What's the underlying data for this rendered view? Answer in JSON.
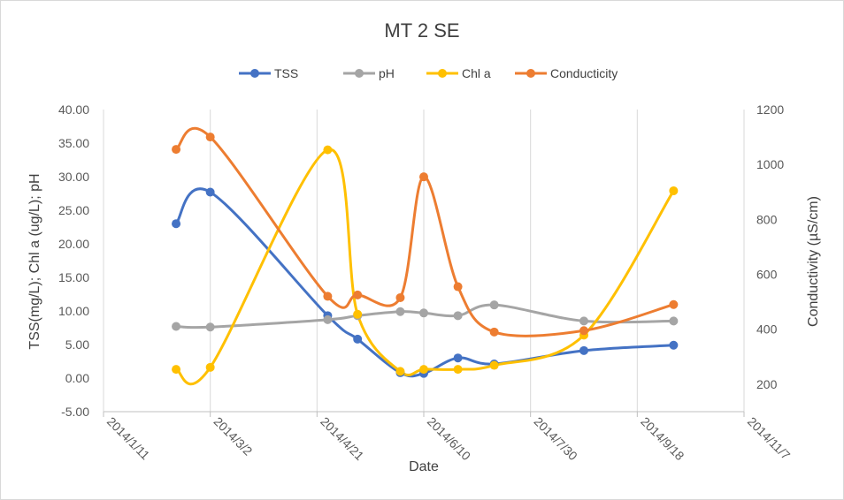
{
  "chart_data": {
    "type": "line",
    "title": "MT 2 SE",
    "xlabel": "Date",
    "ylabel_left": "TSS(mg/L); Chl a (ug/L); pH",
    "ylabel_right": "Conductivity  (µS/cm)",
    "x_ticks": [
      "2014/1/11",
      "2014/3/2",
      "2014/4/21",
      "2014/6/10",
      "2014/7/30",
      "2014/9/18",
      "2014/11/7"
    ],
    "x_range": [
      "2014/1/11",
      "2014/11/7"
    ],
    "y_left_ticks": [
      "-5.00",
      "0.00",
      "5.00",
      "10.00",
      "15.00",
      "20.00",
      "25.00",
      "30.00",
      "35.00",
      "40.00"
    ],
    "y_left_range": [
      -5,
      40
    ],
    "y_right_ticks": [
      "200",
      "400",
      "600",
      "800",
      "1000",
      "1200"
    ],
    "y_right_range": [
      100,
      1200
    ],
    "legend_position": "top",
    "grid": "vertical",
    "smoothed": true,
    "series": [
      {
        "name": "TSS",
        "axis": "left",
        "color": "#4472c4",
        "x": [
          "2014/2/14",
          "2014/3/2",
          "2014/4/26",
          "2014/5/10",
          "2014/5/30",
          "2014/6/10",
          "2014/6/26",
          "2014/7/13",
          "2014/8/24",
          "2014/10/5"
        ],
        "y": [
          23.0,
          27.7,
          9.3,
          5.8,
          0.8,
          0.7,
          3.0,
          2.1,
          4.1,
          4.9
        ]
      },
      {
        "name": "pH",
        "axis": "left",
        "color": "#a5a5a5",
        "x": [
          "2014/2/14",
          "2014/3/2",
          "2014/4/26",
          "2014/5/10",
          "2014/5/30",
          "2014/6/10",
          "2014/6/26",
          "2014/7/13",
          "2014/8/24",
          "2014/10/5"
        ],
        "y": [
          7.7,
          7.6,
          8.7,
          9.3,
          9.9,
          9.7,
          9.3,
          10.9,
          8.5,
          8.5
        ]
      },
      {
        "name": "Chl a",
        "axis": "left",
        "color": "#ffc000",
        "x": [
          "2014/2/14",
          "2014/3/2",
          "2014/4/26",
          "2014/5/10",
          "2014/5/30",
          "2014/6/10",
          "2014/6/26",
          "2014/7/13",
          "2014/8/24",
          "2014/10/5"
        ],
        "y": [
          1.3,
          1.6,
          34.0,
          9.5,
          1.0,
          1.3,
          1.3,
          1.9,
          6.4,
          27.9
        ]
      },
      {
        "name": "Conducticity",
        "axis": "right",
        "color": "#ed7d31",
        "x": [
          "2014/2/14",
          "2014/3/2",
          "2014/4/26",
          "2014/5/10",
          "2014/5/30",
          "2014/6/10",
          "2014/6/26",
          "2014/7/13",
          "2014/8/24",
          "2014/10/5"
        ],
        "y": [
          1055,
          1100,
          520,
          525,
          515,
          955,
          555,
          390,
          395,
          490
        ]
      }
    ]
  }
}
